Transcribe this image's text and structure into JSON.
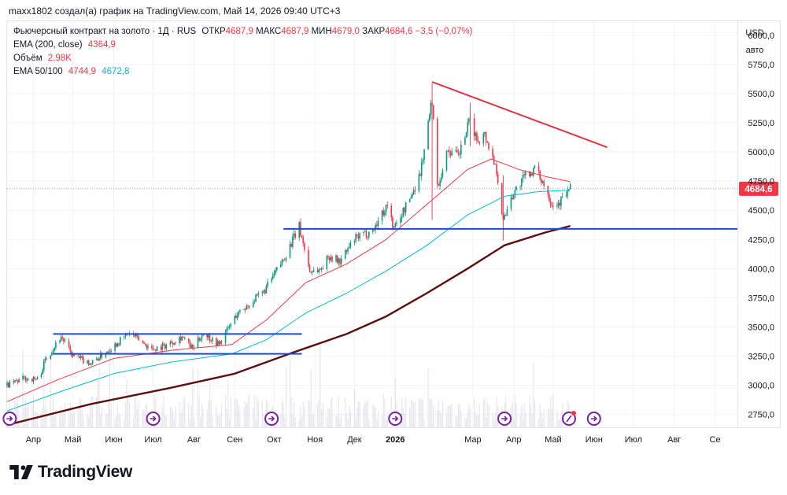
{
  "caption": "maxx1802 создал(а) график на TradingView.com, Май 14, 2026 09:40 UTC+3",
  "legend": {
    "symbol": "Фьючерсный контракт на золото · 1Д · RUS",
    "open_label": "ОТКР",
    "open": "4687,9",
    "high_label": "МАКС",
    "high": "4687,9",
    "low_label": "МИН",
    "low": "4679,0",
    "close_label": "ЗАКР",
    "close": "4684,6",
    "change": "−3,5 (−0,07%)",
    "ema200_label": "EMA (200, close)",
    "ema200": "4364,9",
    "volume_label": "Объём",
    "volume": "2,98K",
    "ema_label": "EMA 50/100",
    "ema50": "4744,9",
    "ema100": "4672,8"
  },
  "price_scale": {
    "currency": "USD",
    "mode": "авто"
  },
  "brand": "TradingView",
  "colors": {
    "up": "#089981",
    "down": "#f23645",
    "ema50": "#f23645",
    "ema100": "#00bcd4",
    "ema200": "#5d0f0f",
    "trendline_blue": "#1e4bd2",
    "trendline_red": "#e53340",
    "last_price_bg": "#f23645",
    "volume": "#d1d4dc"
  },
  "chart_data": {
    "type": "candlestick",
    "y_ticks": [
      2750,
      3000,
      3250,
      3500,
      3750,
      4000,
      4250,
      4500,
      4750,
      5000,
      5250,
      5500,
      5750,
      6000
    ],
    "y_tick_labels": [
      "2750,0",
      "3000,0",
      "3250,0",
      "3500,0",
      "3750,0",
      "4000,0",
      "4250,0",
      "4500,0",
      "4750,0",
      "5000,0",
      "5250,0",
      "5500,0",
      "5750,0",
      "6000,0"
    ],
    "ylim": [
      2640,
      6120
    ],
    "x_ticks": [
      "Апр",
      "Май",
      "Июн",
      "Июл",
      "Авг",
      "Сен",
      "Окт",
      "Ноя",
      "Дек",
      "2026",
      "Мар",
      "Апр",
      "Май",
      "Июн",
      "Июл",
      "Авг",
      "Се"
    ],
    "x_tick_dates": [
      "2025-04-01",
      "2025-05-01",
      "2025-06-01",
      "2025-07-01",
      "2025-08-01",
      "2025-09-01",
      "2025-10-01",
      "2025-11-01",
      "2025-12-01",
      "2026-01-01",
      "2026-03-01",
      "2026-04-01",
      "2026-05-01",
      "2026-06-01",
      "2026-07-01",
      "2026-08-01",
      "2026-09-01"
    ],
    "x_range": [
      "2025-03-12",
      "2026-09-18"
    ],
    "last_price": 4684.6,
    "last_price_label": "4684,6",
    "price_path": [
      [
        "2025-03-12",
        3000
      ],
      [
        "2025-03-25",
        3060
      ],
      [
        "2025-04-05",
        3050
      ],
      [
        "2025-04-10",
        3220
      ],
      [
        "2025-04-22",
        3420
      ],
      [
        "2025-05-01",
        3250
      ],
      [
        "2025-05-15",
        3190
      ],
      [
        "2025-05-30",
        3320
      ],
      [
        "2025-06-13",
        3450
      ],
      [
        "2025-06-30",
        3310
      ],
      [
        "2025-07-10",
        3340
      ],
      [
        "2025-07-23",
        3420
      ],
      [
        "2025-07-31",
        3310
      ],
      [
        "2025-08-08",
        3450
      ],
      [
        "2025-08-20",
        3350
      ],
      [
        "2025-09-02",
        3600
      ],
      [
        "2025-09-23",
        3800
      ],
      [
        "2025-10-08",
        4080
      ],
      [
        "2025-10-20",
        4360
      ],
      [
        "2025-10-28",
        3980
      ],
      [
        "2025-11-05",
        3990
      ],
      [
        "2025-11-12",
        4110
      ],
      [
        "2025-11-20",
        4060
      ],
      [
        "2025-12-01",
        4250
      ],
      [
        "2025-12-15",
        4330
      ],
      [
        "2025-12-26",
        4550
      ],
      [
        "2025-12-31",
        4340
      ],
      [
        "2026-01-13",
        4620
      ],
      [
        "2026-01-20",
        4820
      ],
      [
        "2026-01-29",
        5450
      ],
      [
        "2026-02-02",
        4700
      ],
      [
        "2026-02-10",
        5020
      ],
      [
        "2026-02-18",
        4960
      ],
      [
        "2026-02-27",
        5280
      ],
      [
        "2026-03-04",
        5100
      ],
      [
        "2026-03-10",
        5150
      ],
      [
        "2026-03-19",
        4850
      ],
      [
        "2026-03-24",
        4400
      ],
      [
        "2026-03-29",
        4600
      ],
      [
        "2026-04-10",
        4800
      ],
      [
        "2026-04-17",
        4850
      ],
      [
        "2026-04-23",
        4750
      ],
      [
        "2026-04-30",
        4560
      ],
      [
        "2026-05-05",
        4560
      ],
      [
        "2026-05-14",
        4684.6
      ]
    ],
    "spikes": [
      {
        "date": "2026-01-29",
        "high": 5590,
        "low": 4420
      },
      {
        "date": "2026-02-27",
        "high": 5420,
        "low": 5050
      },
      {
        "date": "2026-03-24",
        "high": 4800,
        "low": 4240
      }
    ],
    "ema50": [
      [
        "2025-03-12",
        2860
      ],
      [
        "2025-04-20",
        3050
      ],
      [
        "2025-06-01",
        3230
      ],
      [
        "2025-07-15",
        3300
      ],
      [
        "2025-08-30",
        3350
      ],
      [
        "2025-09-25",
        3560
      ],
      [
        "2025-10-25",
        3880
      ],
      [
        "2025-11-25",
        4040
      ],
      [
        "2025-12-25",
        4250
      ],
      [
        "2026-01-25",
        4550
      ],
      [
        "2026-02-25",
        4850
      ],
      [
        "2026-03-15",
        4940
      ],
      [
        "2026-04-05",
        4850
      ],
      [
        "2026-04-25",
        4790
      ],
      [
        "2026-05-14",
        4744.9
      ]
    ],
    "ema100": [
      [
        "2025-03-12",
        2780
      ],
      [
        "2025-04-20",
        2940
      ],
      [
        "2025-06-01",
        3100
      ],
      [
        "2025-07-15",
        3200
      ],
      [
        "2025-08-30",
        3270
      ],
      [
        "2025-09-25",
        3390
      ],
      [
        "2025-10-25",
        3620
      ],
      [
        "2025-11-25",
        3790
      ],
      [
        "2025-12-25",
        3980
      ],
      [
        "2026-01-25",
        4200
      ],
      [
        "2026-02-25",
        4460
      ],
      [
        "2026-03-25",
        4620
      ],
      [
        "2026-04-20",
        4660
      ],
      [
        "2026-05-14",
        4672.8
      ]
    ],
    "ema200": [
      [
        "2025-03-12",
        2660
      ],
      [
        "2025-05-15",
        2840
      ],
      [
        "2025-07-15",
        2980
      ],
      [
        "2025-09-01",
        3100
      ],
      [
        "2025-10-15",
        3280
      ],
      [
        "2025-11-25",
        3440
      ],
      [
        "2025-12-25",
        3590
      ],
      [
        "2026-01-25",
        3790
      ],
      [
        "2026-02-25",
        4000
      ],
      [
        "2026-03-25",
        4200
      ],
      [
        "2026-04-25",
        4310
      ],
      [
        "2026-05-14",
        4364.9
      ]
    ],
    "trendlines": [
      {
        "color": "trendline_blue",
        "from": [
          "2025-04-16",
          3440
        ],
        "to": [
          "2025-10-22",
          3440
        ]
      },
      {
        "color": "trendline_blue",
        "from": [
          "2025-04-16",
          3270
        ],
        "to": [
          "2025-10-22",
          3270
        ]
      },
      {
        "color": "trendline_blue",
        "from": [
          "2025-10-08",
          4340
        ],
        "to": [
          "2026-09-18",
          4340
        ]
      },
      {
        "color": "trendline_red",
        "from": [
          "2026-01-29",
          5600
        ],
        "to": [
          "2026-06-11",
          5040
        ]
      }
    ],
    "event_markers": [
      "2025-03-14",
      "2025-07-01",
      "2025-09-29",
      "2026-01-01",
      "2026-03-25",
      "2026-06-01"
    ],
    "event_marker_today": "2026-05-13",
    "volume_ylim": [
      0,
      100
    ]
  }
}
